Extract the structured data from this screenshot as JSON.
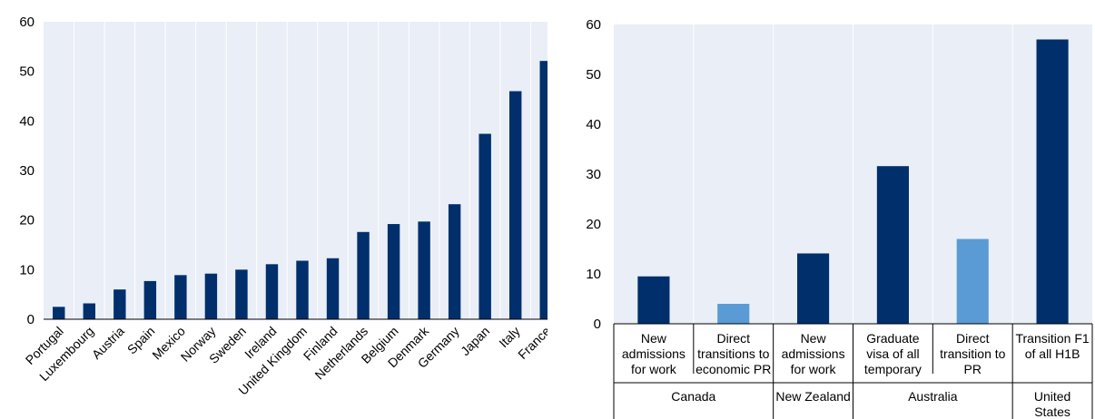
{
  "colors": {
    "dark_bar": "#002f6c",
    "light_bar": "#5b9bd5",
    "plot_bg": "#e9eef7",
    "grid": "#ffffff",
    "axis": "#000000",
    "separator": "#000000"
  },
  "chart_data": [
    {
      "type": "bar",
      "title": "",
      "xlabel": "",
      "ylabel": "",
      "ylim": [
        0,
        60
      ],
      "yticks": [
        "0",
        "10",
        "20",
        "30",
        "40",
        "50",
        "60"
      ],
      "grid": "vertical",
      "categories": [
        "Portugal",
        "Luxembourg",
        "Austria",
        "Spain",
        "Mexico",
        "Norway",
        "Sweden",
        "Ireland",
        "United Kingdom",
        "Finland",
        "Netherlands",
        "Belgium",
        "Denmark",
        "Germany",
        "Japan",
        "Italy",
        "France"
      ],
      "values": [
        2.5,
        3.2,
        6.0,
        7.7,
        8.9,
        9.2,
        10.0,
        11.1,
        11.8,
        12.3,
        17.6,
        19.2,
        19.7,
        23.2,
        37.4,
        46.0,
        52.1
      ],
      "bar_color": "#002f6c"
    },
    {
      "type": "bar",
      "title": "",
      "xlabel": "",
      "ylabel": "",
      "ylim": [
        0,
        60
      ],
      "yticks": [
        "0",
        "10",
        "20",
        "30",
        "40",
        "50",
        "60"
      ],
      "grid": "vertical",
      "categories": [
        {
          "label": [
            "New",
            "admissions",
            "for work"
          ],
          "group": "Canada",
          "value": 9.5,
          "color": "#002f6c"
        },
        {
          "label": [
            "Direct",
            "transitions to",
            "economic PR"
          ],
          "group": "Canada",
          "value": 4.0,
          "color": "#5b9bd5"
        },
        {
          "label": [
            "New",
            "admissions",
            "for work"
          ],
          "group": "New Zealand",
          "value": 14.1,
          "color": "#002f6c"
        },
        {
          "label": [
            "Graduate",
            "visa of all",
            "temporary"
          ],
          "group": "Australia",
          "value": 31.6,
          "color": "#002f6c"
        },
        {
          "label": [
            "Direct",
            "transition to",
            "PR"
          ],
          "group": "Australia",
          "value": 17.0,
          "color": "#5b9bd5"
        },
        {
          "label": [
            "Transition F1",
            "of all H1B"
          ],
          "group": "United States",
          "value": 57.0,
          "color": "#002f6c"
        }
      ],
      "groups": [
        {
          "name": [
            "Canada"
          ],
          "start": 0,
          "count": 2
        },
        {
          "name": [
            "New Zealand"
          ],
          "start": 2,
          "count": 1
        },
        {
          "name": [
            "Australia"
          ],
          "start": 3,
          "count": 2
        },
        {
          "name": [
            "United",
            "States"
          ],
          "start": 5,
          "count": 1
        }
      ]
    }
  ]
}
